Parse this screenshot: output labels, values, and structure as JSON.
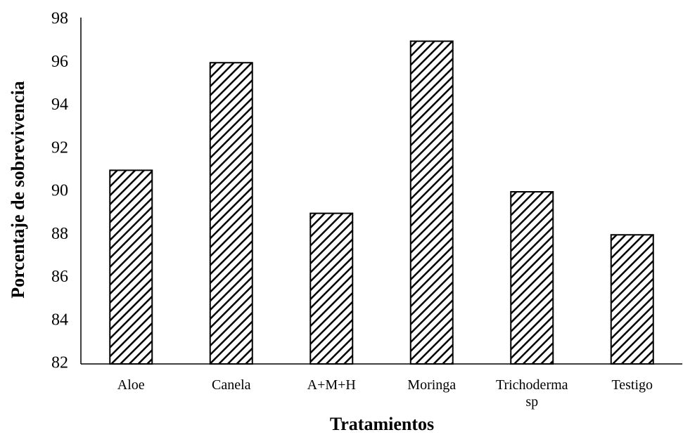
{
  "chart_data": {
    "type": "bar",
    "x_label": "Tratamientos",
    "y_label": "Porcentaje de sobrevivencia",
    "categories": [
      "Aloe",
      "Canela",
      "A+M+H",
      "Moringa",
      "Trichoderma sp",
      "Testigo"
    ],
    "values": [
      91,
      96,
      89,
      97,
      90,
      88
    ],
    "color": "#000000",
    "ylim": [
      82,
      98
    ],
    "yticks": [
      82,
      84,
      86,
      88,
      90,
      92,
      94,
      96,
      98
    ],
    "grid": false
  }
}
